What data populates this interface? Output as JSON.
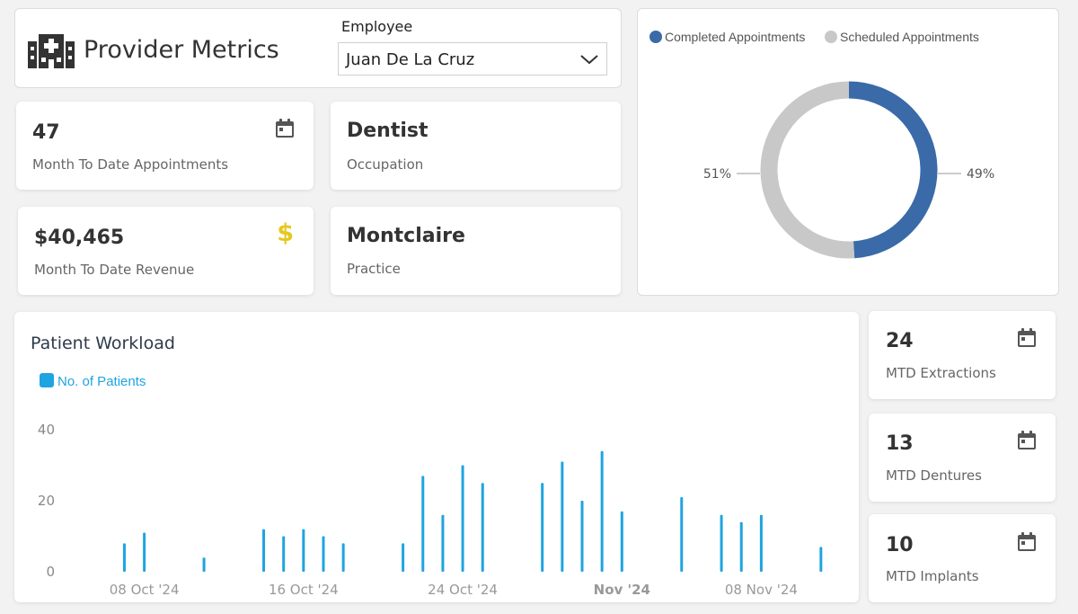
{
  "header": {
    "title": "Provider Metrics",
    "employee_label": "Employee",
    "employee_selected": "Juan De La Cruz"
  },
  "kpis": {
    "appointments": {
      "value": "47",
      "label": "Month To Date Appointments"
    },
    "revenue": {
      "value": "$40,465",
      "label": "Month To Date Revenue",
      "icon": "$"
    },
    "occupation": {
      "value": "Dentist",
      "label": "Occupation"
    },
    "practice": {
      "value": "Montclaire",
      "label": "Practice"
    }
  },
  "mtd": {
    "extractions": {
      "value": "24",
      "label": "MTD Extractions"
    },
    "dentures": {
      "value": "13",
      "label": "MTD Dentures"
    },
    "implants": {
      "value": "10",
      "label": "MTD Implants"
    }
  },
  "colors": {
    "completed": "#3a6aa8",
    "scheduled": "#c8c8c8",
    "bars": "#1ea4e0",
    "dollar": "#e6c820"
  },
  "chart_data": [
    {
      "type": "pie",
      "title": "",
      "legend_position": "top-left",
      "series": [
        {
          "name": "Completed Appointments",
          "value": 49,
          "label": "49%"
        },
        {
          "name": "Scheduled Appointments",
          "value": 51,
          "label": "51%"
        }
      ]
    },
    {
      "type": "bar",
      "title": "Patient Workload",
      "legend": [
        "No. of Patients"
      ],
      "grid": false,
      "ylim": [
        0,
        40
      ],
      "yticks": [
        "0",
        "20",
        "40"
      ],
      "xticks": [
        "08 Oct '24",
        "16 Oct '24",
        "24 Oct '24",
        "Nov '24",
        "08 Nov '24"
      ],
      "series": [
        {
          "name": "No. of Patients",
          "x": [
            "2024-10-07",
            "2024-10-08",
            "2024-10-11",
            "2024-10-14",
            "2024-10-15",
            "2024-10-16",
            "2024-10-17",
            "2024-10-18",
            "2024-10-21",
            "2024-10-22",
            "2024-10-23",
            "2024-10-24",
            "2024-10-25",
            "2024-10-28",
            "2024-10-29",
            "2024-10-30",
            "2024-10-31",
            "2024-11-01",
            "2024-11-04",
            "2024-11-06",
            "2024-11-07",
            "2024-11-08",
            "2024-11-11"
          ],
          "values": [
            8,
            11,
            4,
            12,
            10,
            12,
            10,
            8,
            8,
            27,
            16,
            30,
            25,
            25,
            31,
            20,
            34,
            17,
            21,
            16,
            14,
            16,
            7
          ]
        }
      ]
    }
  ]
}
